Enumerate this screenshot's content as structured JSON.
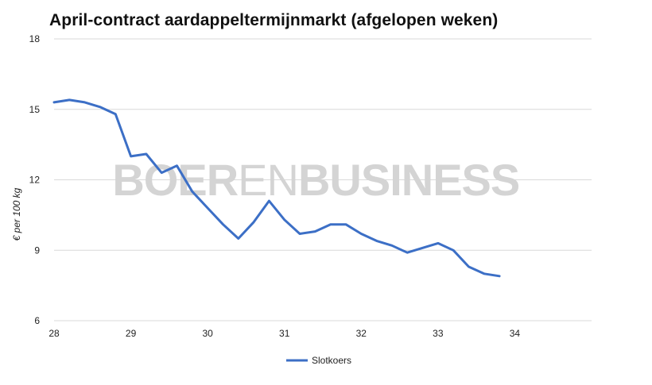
{
  "watermark": {
    "part1": "BOER",
    "part2": "EN",
    "part3": "BUSINESS"
  },
  "colors": {
    "series": "#3c6fc6",
    "grid": "#d9d9d9",
    "watermark": "#d4d4d4"
  },
  "chart_data": {
    "type": "line",
    "title": "April-contract aardappeltermijnmarkt (afgelopen weken)",
    "xlabel": "",
    "ylabel": "€ per 100 kg",
    "xlim": [
      28,
      35
    ],
    "ylim": [
      6,
      18
    ],
    "xticks": [
      "28",
      "29",
      "30",
      "31",
      "32",
      "33",
      "34"
    ],
    "yticks": [
      "6",
      "9",
      "12",
      "15",
      "18"
    ],
    "grid": true,
    "legend_position": "bottom",
    "series": [
      {
        "name": "Slotkoers",
        "x": [
          28.0,
          28.2,
          28.4,
          28.6,
          28.8,
          29.0,
          29.2,
          29.4,
          29.6,
          29.8,
          30.0,
          30.2,
          30.4,
          30.6,
          30.8,
          31.0,
          31.2,
          31.4,
          31.6,
          31.8,
          32.0,
          32.2,
          32.4,
          32.6,
          32.8,
          33.0,
          33.2,
          33.4,
          33.6,
          33.8
        ],
        "y": [
          15.3,
          15.4,
          15.3,
          15.1,
          14.8,
          13.0,
          13.1,
          12.3,
          12.6,
          11.5,
          10.8,
          10.1,
          9.5,
          10.2,
          11.1,
          10.3,
          9.7,
          9.8,
          10.1,
          10.1,
          9.7,
          9.4,
          9.2,
          8.9,
          9.1,
          9.3,
          9.0,
          8.3,
          8.0,
          7.9
        ]
      }
    ]
  }
}
